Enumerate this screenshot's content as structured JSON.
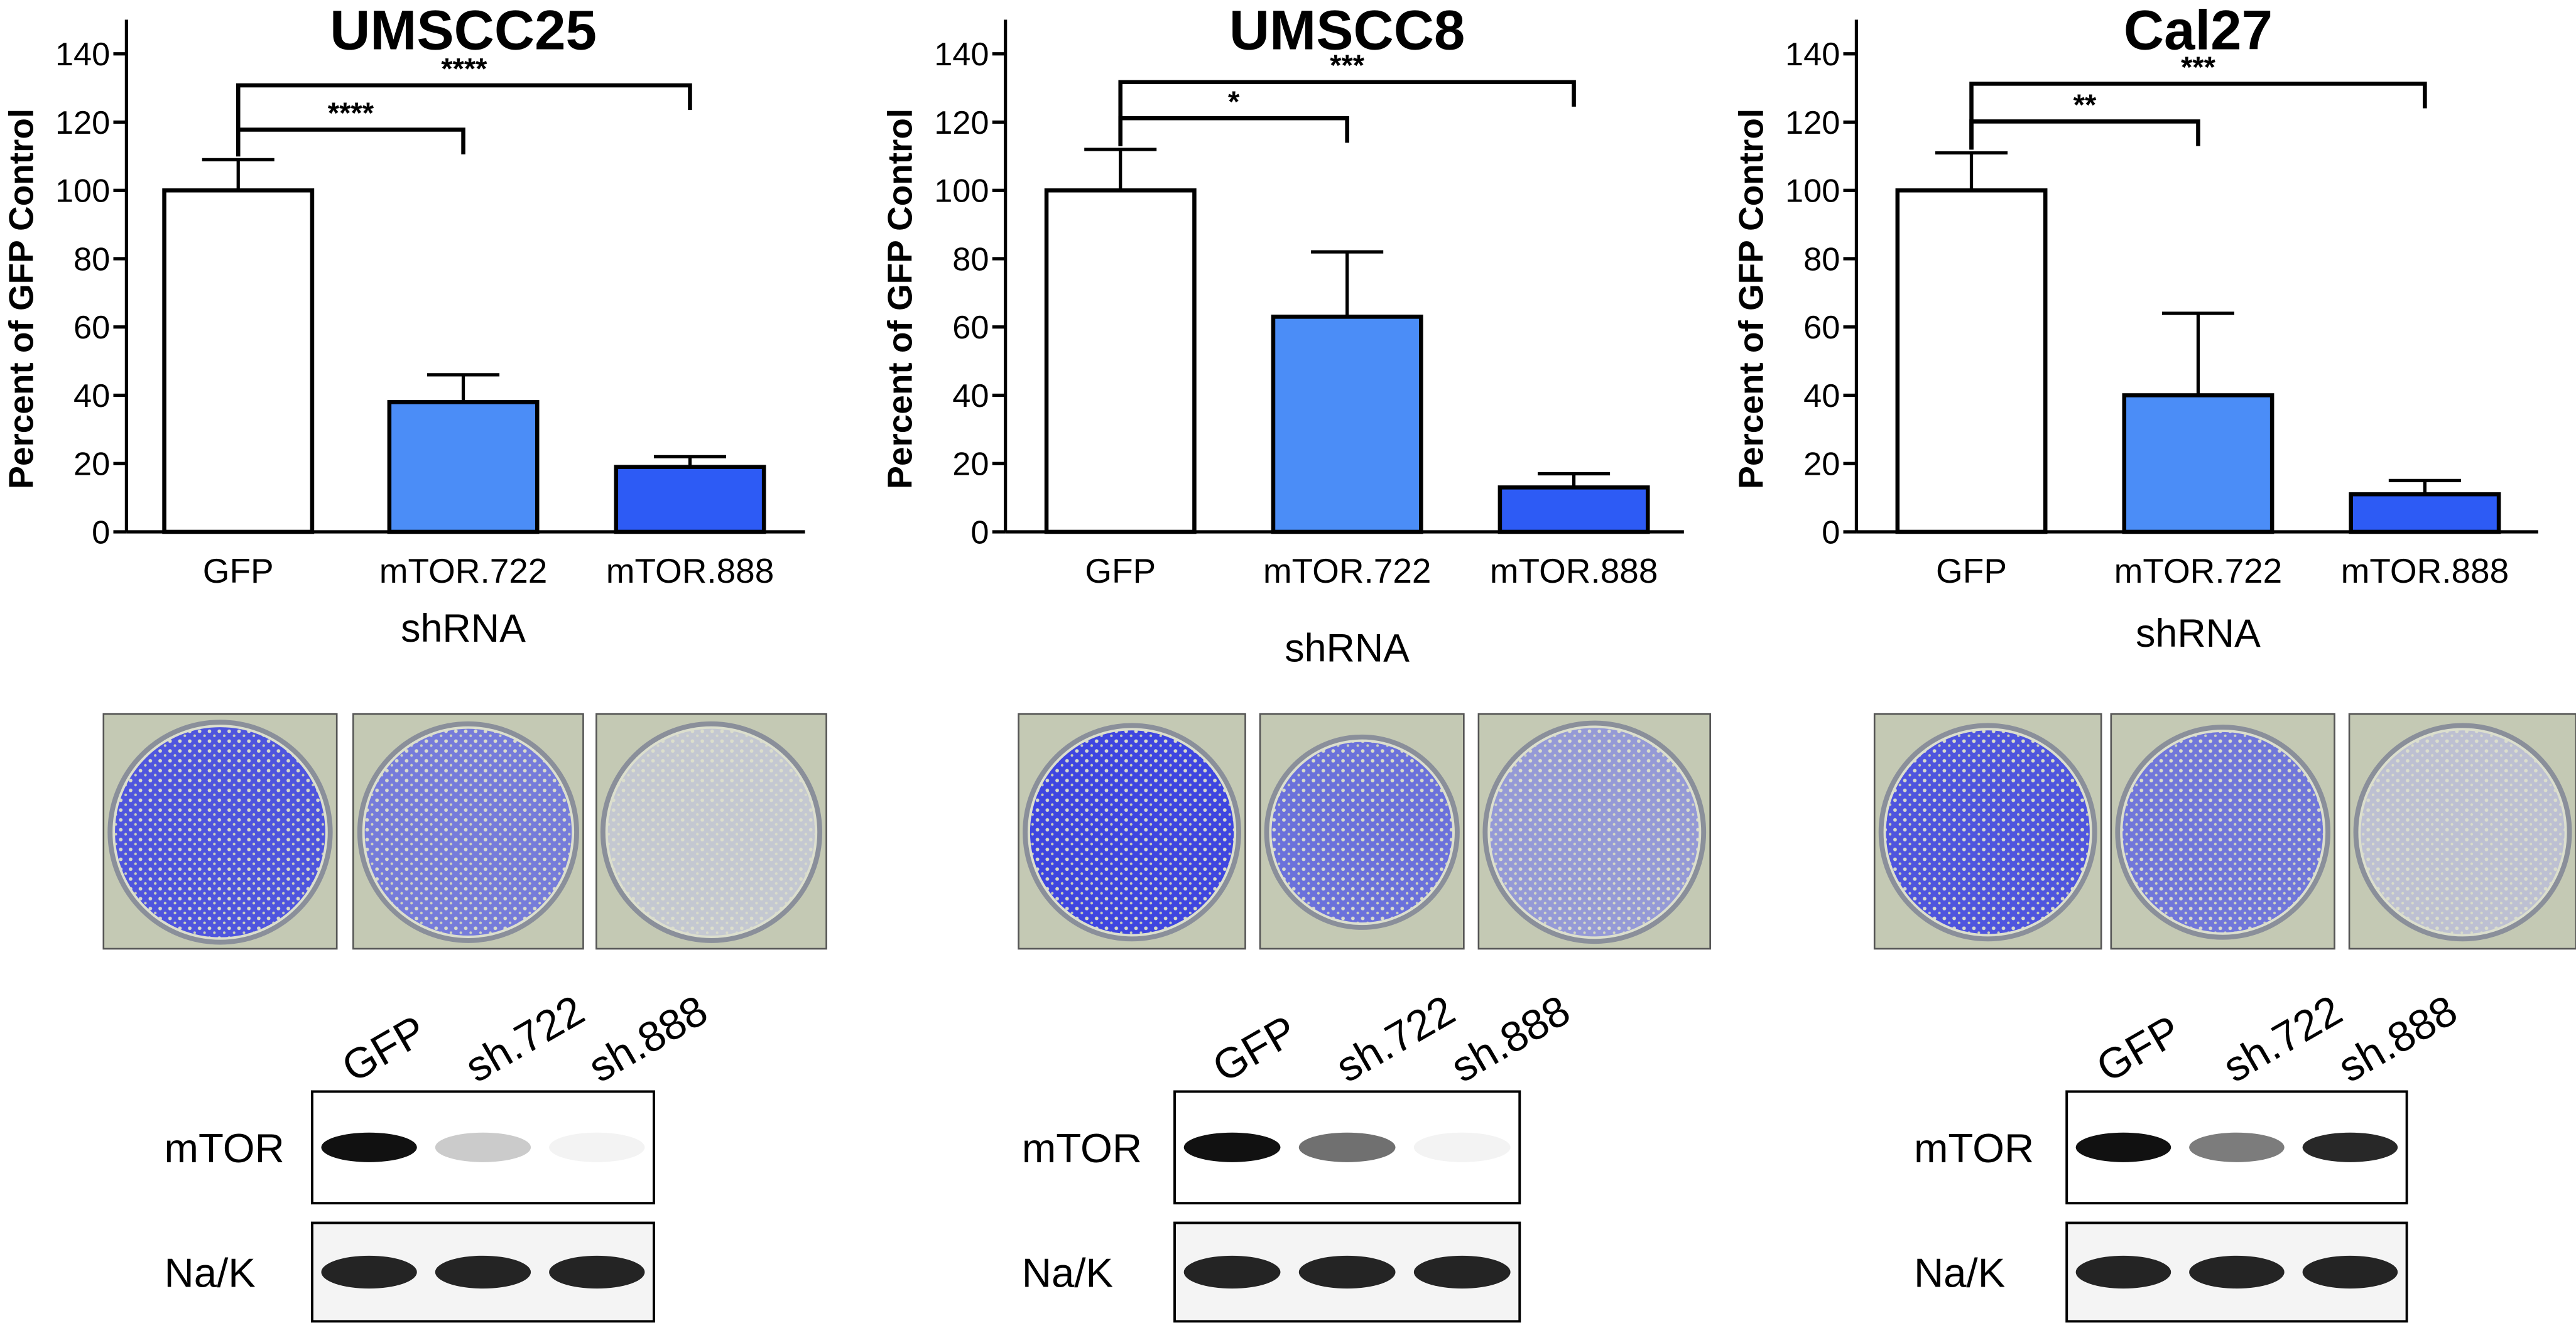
{
  "chart_data": [
    {
      "type": "bar",
      "title": "UMSCC25",
      "ylabel": "Percent of GFP Control",
      "xlabel": "shRNA",
      "categories": [
        "GFP",
        "mTOR.722",
        "mTOR.888"
      ],
      "values": [
        100,
        38,
        19
      ],
      "errors": [
        9,
        8,
        3
      ],
      "colors": [
        "#ffffff",
        "#4b8df7",
        "#2d5bf5"
      ],
      "ylim": [
        0,
        150
      ],
      "yticks": [
        0,
        20,
        40,
        60,
        80,
        100,
        120,
        140
      ],
      "annotations": [
        {
          "label": "****",
          "from": 0,
          "to": 2
        },
        {
          "label": "****",
          "from": 0,
          "to": 1
        }
      ]
    },
    {
      "type": "bar",
      "title": "UMSCC8",
      "ylabel": "Percent of GFP Control",
      "xlabel": "shRNA",
      "categories": [
        "GFP",
        "mTOR.722",
        "mTOR.888"
      ],
      "values": [
        100,
        63,
        13
      ],
      "errors": [
        12,
        19,
        4
      ],
      "colors": [
        "#ffffff",
        "#4b8df7",
        "#2d5bf5"
      ],
      "ylim": [
        0,
        150
      ],
      "yticks": [
        0,
        20,
        40,
        60,
        80,
        100,
        120,
        140
      ],
      "annotations": [
        {
          "label": "***",
          "from": 0,
          "to": 2
        },
        {
          "label": "*",
          "from": 0,
          "to": 1
        }
      ]
    },
    {
      "type": "bar",
      "title": "Cal27",
      "ylabel": "Percent of GFP Control",
      "xlabel": "shRNA",
      "categories": [
        "GFP",
        "mTOR.722",
        "mTOR.888"
      ],
      "values": [
        100,
        40,
        11
      ],
      "errors": [
        11,
        24,
        4
      ],
      "colors": [
        "#ffffff",
        "#4b8df7",
        "#2d5bf5"
      ],
      "ylim": [
        0,
        150
      ],
      "yticks": [
        0,
        20,
        40,
        60,
        80,
        100,
        120,
        140
      ],
      "annotations": [
        {
          "label": "***",
          "from": 0,
          "to": 2
        },
        {
          "label": "**",
          "from": 0,
          "to": 1
        }
      ]
    }
  ],
  "blots": [
    {
      "lanes": [
        "GFP",
        "sh.722",
        "sh.888"
      ],
      "rows": [
        "mTOR",
        "Na/K"
      ]
    },
    {
      "lanes": [
        "GFP",
        "sh.722",
        "sh.888"
      ],
      "rows": [
        "mTOR",
        "Na/K"
      ]
    },
    {
      "lanes": [
        "GFP",
        "sh.722",
        "sh.888"
      ],
      "rows": [
        "mTOR",
        "Na/K"
      ]
    }
  ]
}
